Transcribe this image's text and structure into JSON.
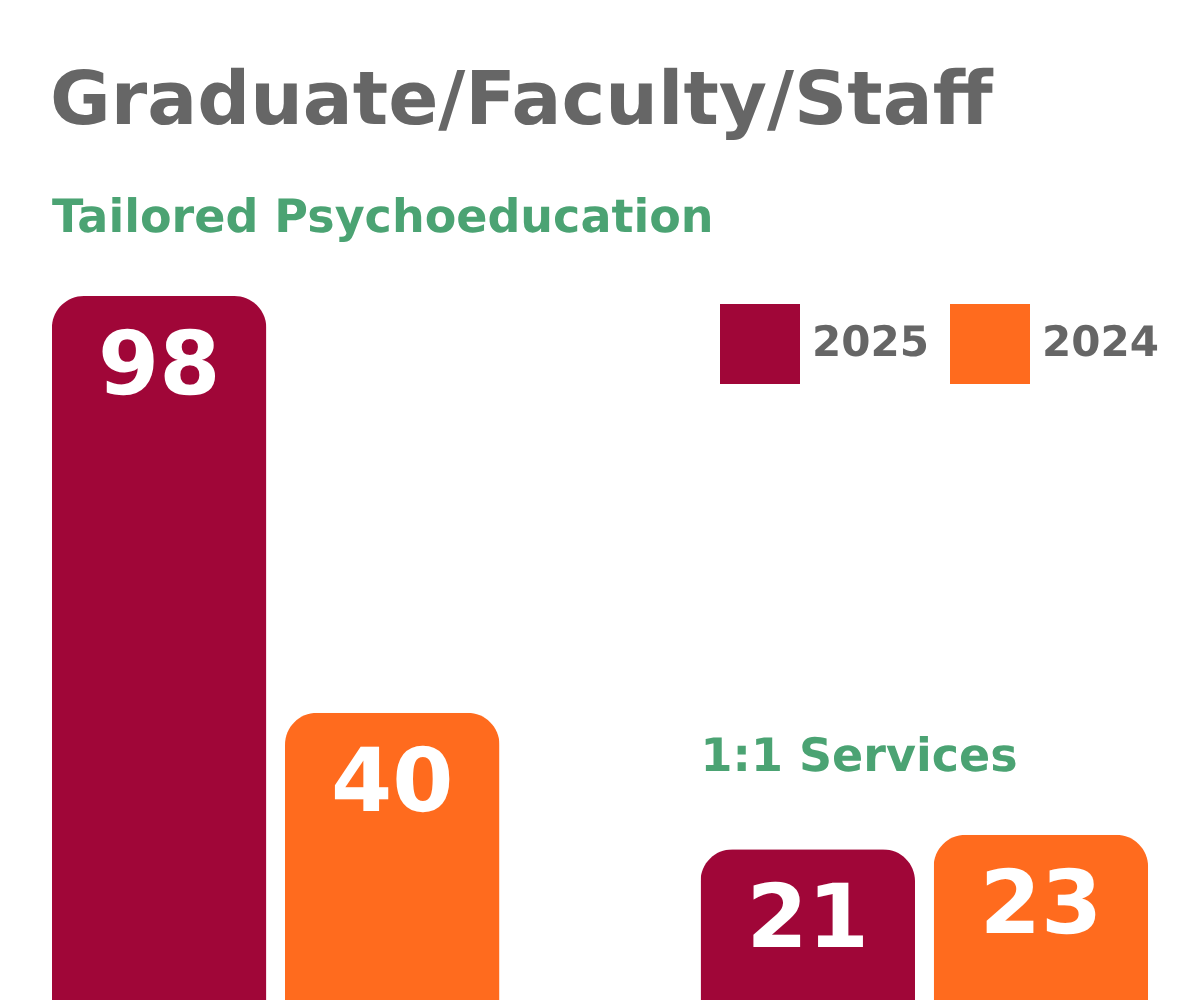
{
  "chart_data": {
    "type": "bar",
    "title": "Graduate/Faculty/Staff",
    "categories": [
      "Tailored Psychoeducation",
      "1:1 Services"
    ],
    "series": [
      {
        "name": "2025",
        "color": "#a00638",
        "values": [
          98,
          21
        ]
      },
      {
        "name": "2024",
        "color": "#ff6b1e",
        "values": [
          40,
          23
        ]
      }
    ],
    "data_labels": true,
    "legend": "top right"
  }
}
